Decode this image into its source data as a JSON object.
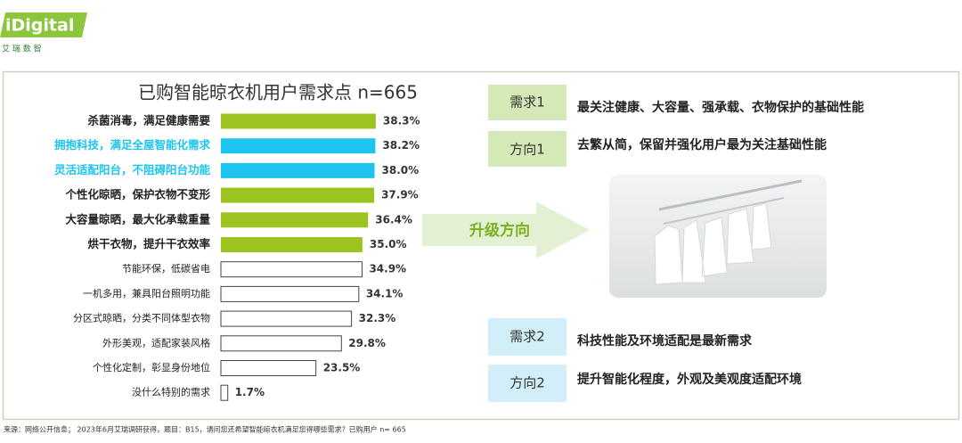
{
  "logo": {
    "brand": "iDigital",
    "name": "艾 瑞 数 智"
  },
  "chart_data": {
    "type": "bar",
    "orientation": "horizontal",
    "title": "已购智能晾衣机用户需求点 n=665",
    "categories": [
      "杀菌消毒，满足健康需要",
      "拥抱科技，满足全屋智能化需求",
      "灵活适配阳台，不阻碍阳台功能",
      "个性化晾晒，保护衣物不变形",
      "大容量晾晒，最大化承载重量",
      "烘干衣物，提升干衣效率",
      "节能环保，低碳省电",
      "一机多用，兼具阳台照明功能",
      "分区式晾晒，分类不同体型衣物",
      "外形美观，适配家装风格",
      "个性化定制，彰显身份地位",
      "没什么特别的需求"
    ],
    "values": [
      38.3,
      38.2,
      38.0,
      37.9,
      36.4,
      35.0,
      34.9,
      34.1,
      32.3,
      29.8,
      23.5,
      1.7
    ],
    "value_labels": [
      "38.3%",
      "38.2%",
      "38.0%",
      "37.9%",
      "36.4%",
      "35.0%",
      "34.9%",
      "34.1%",
      "32.3%",
      "29.8%",
      "23.5%",
      "1.7%"
    ],
    "colors": [
      "#9cc420",
      "#1cc4ee",
      "#1cc4ee",
      "#9cc420",
      "#9cc420",
      "#9cc420",
      "#ffffff",
      "#ffffff",
      "#ffffff",
      "#ffffff",
      "#ffffff",
      "#ffffff"
    ]
  },
  "arrow_label": "升级方向",
  "cards": [
    {
      "tag": "需求1",
      "text": "最关注健康、大容量、强承载、衣物保护的基础性能"
    },
    {
      "tag": "方向1",
      "text": "去繁从简，保留并强化用户最为关注基础性能"
    },
    {
      "tag": "需求2",
      "text": "科技性能及环境适配是最新需求"
    },
    {
      "tag": "方向2",
      "text": "提升智能化程度，外观及美观度适配环境"
    }
  ],
  "source": "来源：网络公开信息； 2023年6月艾瑞调研获得，题目：B15，请问您还希望智能晾衣机满足您得哪些需求？已购用户 n= 665"
}
